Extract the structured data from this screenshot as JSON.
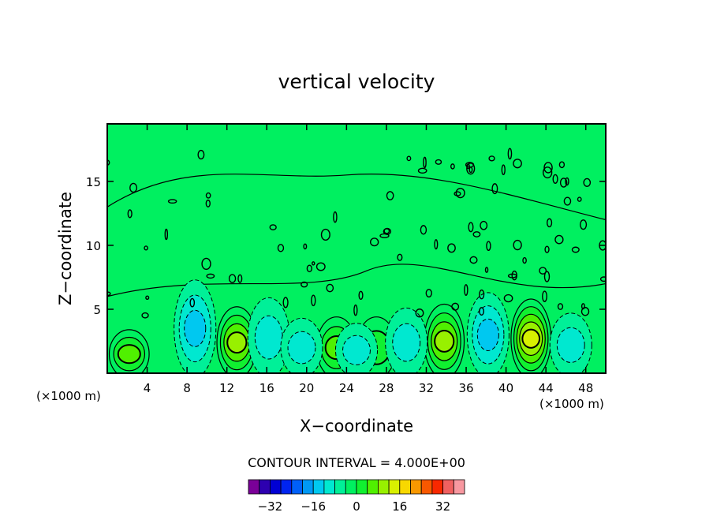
{
  "chart_data": {
    "type": "heatmap",
    "title": "vertical velocity",
    "xlabel": "X−coordinate",
    "ylabel": "Z−coordinate",
    "x_units_left": "(×1000 m)",
    "x_units_right": "(×1000 m)",
    "xlim": [
      0,
      50
    ],
    "ylim": [
      0,
      19.5
    ],
    "x_ticks": [
      4,
      8,
      12,
      16,
      20,
      24,
      28,
      32,
      36,
      40,
      44,
      48
    ],
    "y_ticks": [
      5,
      10,
      15
    ],
    "grid": false,
    "contour_interval_text": "CONTOUR INTERVAL = 4.000E+00",
    "contour_interval": 4.0,
    "background_level": 0,
    "updrafts": [
      {
        "x": 2.2,
        "z": 1.5,
        "value": 6
      },
      {
        "x": 13.0,
        "z": 2.4,
        "value": 10
      },
      {
        "x": 23.0,
        "z": 2.0,
        "value": 6
      },
      {
        "x": 27.0,
        "z": 2.0,
        "value": 4
      },
      {
        "x": 33.8,
        "z": 2.5,
        "value": 12
      },
      {
        "x": 42.5,
        "z": 2.7,
        "value": 14
      }
    ],
    "downdrafts": [
      {
        "x": 8.8,
        "z": 3.5,
        "value": -6
      },
      {
        "x": 16.2,
        "z": 2.8,
        "value": -5
      },
      {
        "x": 19.5,
        "z": 2.0,
        "value": -4
      },
      {
        "x": 25.0,
        "z": 1.8,
        "value": -4
      },
      {
        "x": 30.0,
        "z": 2.4,
        "value": -5
      },
      {
        "x": 38.2,
        "z": 3.0,
        "value": -7
      },
      {
        "x": 46.5,
        "z": 2.2,
        "value": -3
      }
    ],
    "colorbar": {
      "tick_labels": [
        "−32",
        "−16",
        "0",
        "16",
        "32"
      ],
      "tick_values": [
        -32,
        -16,
        0,
        16,
        32
      ],
      "levels": [
        -36,
        -32,
        -28,
        -24,
        -20,
        -16,
        -12,
        -8,
        -4,
        0,
        4,
        8,
        12,
        16,
        20,
        24,
        28,
        32,
        36
      ],
      "colors": [
        "#7a0098",
        "#2d00b0",
        "#0000d4",
        "#0024f0",
        "#0060f8",
        "#0098f4",
        "#00c8f0",
        "#00e8d0",
        "#00f098",
        "#00f060",
        "#10f030",
        "#50f000",
        "#98f000",
        "#d8f000",
        "#f8d800",
        "#f89800",
        "#f85800",
        "#f82800",
        "#f06060",
        "#f898a0"
      ]
    }
  }
}
